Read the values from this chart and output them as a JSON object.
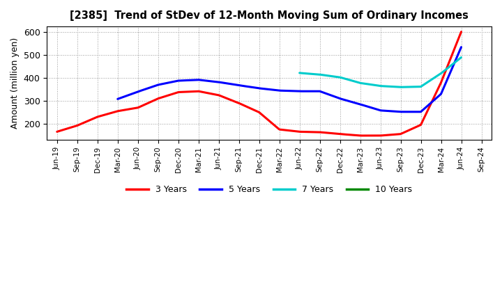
{
  "title": "[2385]  Trend of StDev of 12-Month Moving Sum of Ordinary Incomes",
  "ylabel": "Amount (million yen)",
  "background_color": "#ffffff",
  "grid_color": "#888888",
  "x_tick_labels": [
    "Jun-19",
    "Sep-19",
    "Dec-19",
    "Mar-20",
    "Jun-20",
    "Sep-20",
    "Dec-20",
    "Mar-21",
    "Jun-21",
    "Sep-21",
    "Dec-21",
    "Mar-22",
    "Jun-22",
    "Sep-22",
    "Dec-22",
    "Mar-23",
    "Jun-23",
    "Sep-23",
    "Dec-23",
    "Mar-24",
    "Jun-24",
    "Sep-24"
  ],
  "series": {
    "3 Years": {
      "color": "#ff0000",
      "x": [
        0,
        1,
        2,
        3,
        4,
        5,
        6,
        7,
        8,
        9,
        10,
        11,
        12,
        13,
        14,
        15,
        16,
        17,
        18,
        19,
        20
      ],
      "y": [
        165,
        192,
        230,
        255,
        270,
        310,
        338,
        342,
        325,
        290,
        250,
        175,
        165,
        163,
        155,
        148,
        148,
        155,
        195,
        380,
        602
      ]
    },
    "5 Years": {
      "color": "#0000ff",
      "x": [
        3,
        4,
        5,
        6,
        7,
        8,
        9,
        10,
        11,
        12,
        13,
        14,
        15,
        16,
        17,
        18,
        19,
        20
      ],
      "y": [
        308,
        340,
        370,
        388,
        392,
        382,
        368,
        355,
        345,
        342,
        342,
        310,
        285,
        258,
        252,
        252,
        330,
        535
      ]
    },
    "7 Years": {
      "color": "#00cccc",
      "x": [
        12,
        13,
        14,
        15,
        16,
        17,
        18,
        19,
        20
      ],
      "y": [
        422,
        415,
        403,
        378,
        365,
        360,
        362,
        420,
        490
      ]
    },
    "10 Years": {
      "color": "#008800",
      "x": [],
      "y": []
    }
  },
  "ylim": [
    130,
    625
  ],
  "yticks": [
    200,
    300,
    400,
    500,
    600
  ],
  "legend_labels": [
    "3 Years",
    "5 Years",
    "7 Years",
    "10 Years"
  ],
  "legend_colors": [
    "#ff0000",
    "#0000ff",
    "#00cccc",
    "#008800"
  ]
}
